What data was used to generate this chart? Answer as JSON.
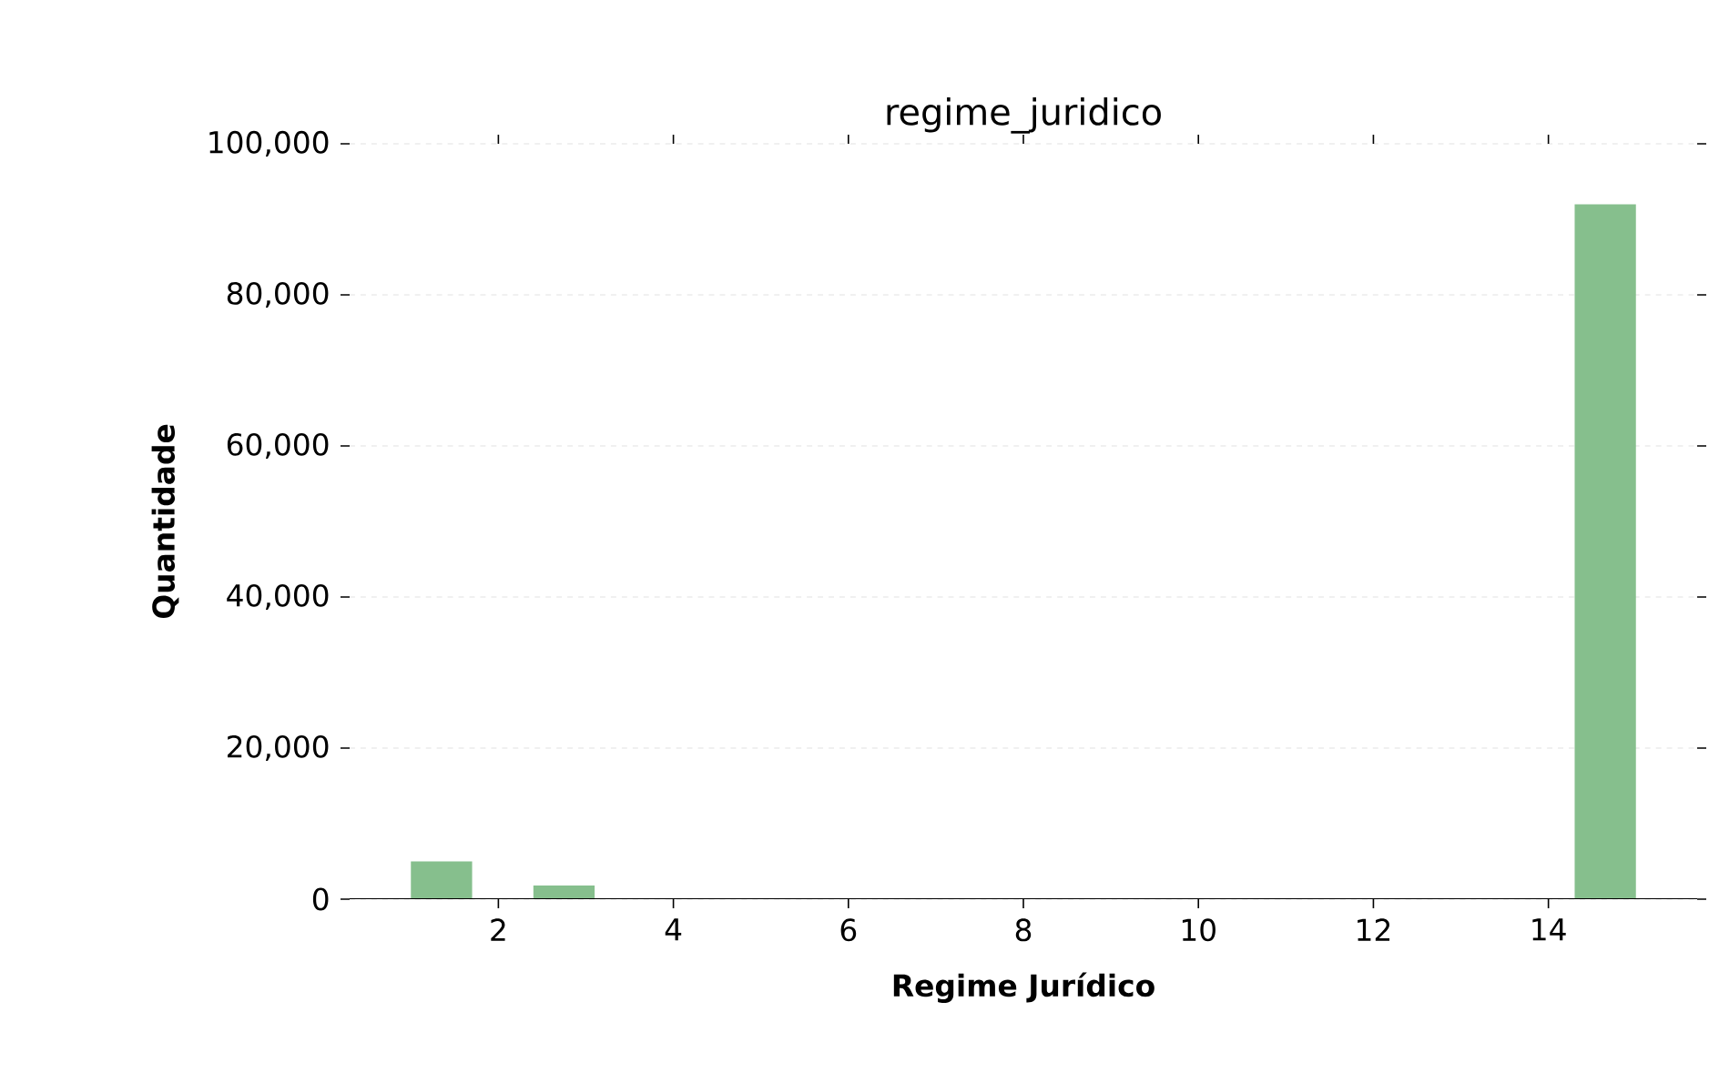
{
  "chart_data": {
    "type": "histogram",
    "title": "regime_juridico",
    "xlabel": "Regime Jurídico",
    "ylabel": "Quantidade",
    "bins": [
      1,
      1.7,
      2.4,
      3.1,
      3.8,
      4.5,
      5.2,
      5.9,
      6.6,
      7.3,
      8,
      8.7,
      9.4,
      10.1,
      10.8,
      11.5,
      12.2,
      12.9,
      13.6,
      14.3,
      15
    ],
    "values": [
      5000,
      0,
      1800,
      0,
      0,
      0,
      0,
      0,
      0,
      0,
      0,
      0,
      0,
      0,
      0,
      0,
      0,
      0,
      0,
      92000
    ],
    "color": "#86bf8d",
    "xlim": [
      0.3,
      15.7
    ],
    "ylim": [
      0,
      100000
    ],
    "xticks": [
      2,
      4,
      6,
      8,
      10,
      12,
      14
    ],
    "yticks": [
      {
        "value": 0,
        "label": "0"
      },
      {
        "value": 20000,
        "label": "20,000"
      },
      {
        "value": 40000,
        "label": "40,000"
      },
      {
        "value": 60000,
        "label": "60,000"
      },
      {
        "value": 80000,
        "label": "80,000"
      },
      {
        "value": 100000,
        "label": "100,000"
      }
    ],
    "grid": "y"
  }
}
